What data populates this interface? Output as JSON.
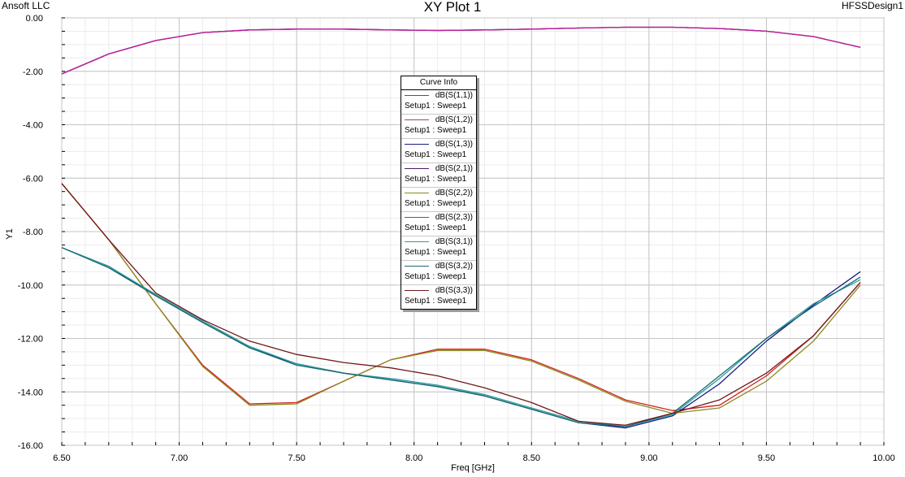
{
  "header": {
    "company": "Ansoft LLC",
    "title": "XY Plot 1",
    "design": "HFSSDesign1"
  },
  "chart_data": {
    "type": "line",
    "title": "XY Plot 1",
    "xlabel": "Freq [GHz]",
    "ylabel": "Y1",
    "xlim": [
      6.5,
      10.0
    ],
    "ylim": [
      -16.0,
      0.0
    ],
    "xticks": [
      "6.50",
      "7.00",
      "7.50",
      "8.00",
      "8.50",
      "9.00",
      "9.50",
      "10.00"
    ],
    "yticks": [
      "0.00",
      "-2.00",
      "-4.00",
      "-6.00",
      "-8.00",
      "-10.00",
      "-12.00",
      "-14.00",
      "-16.00"
    ],
    "grid": true,
    "legend_title": "Curve Info",
    "legend_placement": "center-top",
    "x": [
      6.5,
      6.7,
      6.9,
      7.1,
      7.3,
      7.5,
      7.7,
      7.9,
      8.1,
      8.3,
      8.5,
      8.7,
      8.9,
      9.1,
      9.3,
      9.5,
      9.7,
      9.9
    ],
    "series": [
      {
        "name": "dB(S(1,1))",
        "setup": "Setup1 : Sweep1",
        "color": "#d42020",
        "values": [
          -6.2,
          -8.3,
          -10.7,
          -13.0,
          -14.45,
          -14.4,
          -13.6,
          -12.8,
          -12.4,
          -12.4,
          -12.8,
          -13.5,
          -14.3,
          -14.7,
          -14.5,
          -13.4,
          -11.9,
          -9.9
        ]
      },
      {
        "name": "dB(S(1,2))",
        "setup": "Setup1 : Sweep1",
        "color": "#8a5070",
        "values": [
          -2.1,
          -1.35,
          -0.85,
          -0.55,
          -0.45,
          -0.42,
          -0.42,
          -0.45,
          -0.47,
          -0.45,
          -0.42,
          -0.38,
          -0.35,
          -0.35,
          -0.4,
          -0.5,
          -0.7,
          -1.1
        ]
      },
      {
        "name": "dB(S(1,3))",
        "setup": "Setup1 : Sweep1",
        "color": "#1a1a80",
        "values": [
          -8.6,
          -9.3,
          -10.4,
          -11.4,
          -12.35,
          -12.95,
          -13.3,
          -13.55,
          -13.8,
          -14.15,
          -14.65,
          -15.15,
          -15.35,
          -14.9,
          -13.7,
          -12.1,
          -10.75,
          -9.5
        ]
      },
      {
        "name": "dB(S(2,1))",
        "setup": "Setup1 : Sweep1",
        "color": "#501a60",
        "values": [
          -2.1,
          -1.35,
          -0.85,
          -0.55,
          -0.45,
          -0.42,
          -0.42,
          -0.45,
          -0.47,
          -0.45,
          -0.42,
          -0.38,
          -0.35,
          -0.35,
          -0.4,
          -0.5,
          -0.7,
          -1.1
        ]
      },
      {
        "name": "dB(S(2,2))",
        "setup": "Setup1 : Sweep1",
        "color": "#8a8a20",
        "values": [
          -6.2,
          -8.3,
          -10.7,
          -13.05,
          -14.5,
          -14.45,
          -13.6,
          -12.8,
          -12.45,
          -12.45,
          -12.85,
          -13.55,
          -14.35,
          -14.8,
          -14.6,
          -13.6,
          -12.1,
          -10.0
        ]
      },
      {
        "name": "dB(S(2,3))",
        "setup": "Setup1 : Sweep1",
        "color": "#c020a0",
        "values": [
          -2.1,
          -1.35,
          -0.85,
          -0.55,
          -0.45,
          -0.42,
          -0.42,
          -0.45,
          -0.47,
          -0.45,
          -0.42,
          -0.38,
          -0.35,
          -0.35,
          -0.4,
          -0.5,
          -0.7,
          -1.1
        ]
      },
      {
        "name": "dB(S(3,1))",
        "setup": "Setup1 : Sweep1",
        "color": "#2aa0a0",
        "values": [
          -8.6,
          -9.3,
          -10.35,
          -11.35,
          -12.3,
          -12.95,
          -13.3,
          -13.5,
          -13.75,
          -14.1,
          -14.6,
          -15.1,
          -15.3,
          -14.85,
          -13.5,
          -12.0,
          -10.7,
          -9.8
        ]
      },
      {
        "name": "dB(S(3,2))",
        "setup": "Setup1 : Sweep1",
        "color": "#1a6a70",
        "values": [
          -8.6,
          -9.35,
          -10.4,
          -11.4,
          -12.35,
          -13.0,
          -13.3,
          -13.55,
          -13.8,
          -14.15,
          -14.65,
          -15.15,
          -15.3,
          -14.8,
          -13.4,
          -12.0,
          -10.8,
          -9.7
        ]
      },
      {
        "name": "dB(S(3,3))",
        "setup": "Setup1 : Sweep1",
        "color": "#701818",
        "values": [
          -6.2,
          -8.3,
          -10.3,
          -11.3,
          -12.1,
          -12.6,
          -12.9,
          -13.1,
          -13.4,
          -13.85,
          -14.4,
          -15.1,
          -15.25,
          -14.8,
          -14.3,
          -13.3,
          -11.9,
          -9.9
        ]
      }
    ]
  }
}
